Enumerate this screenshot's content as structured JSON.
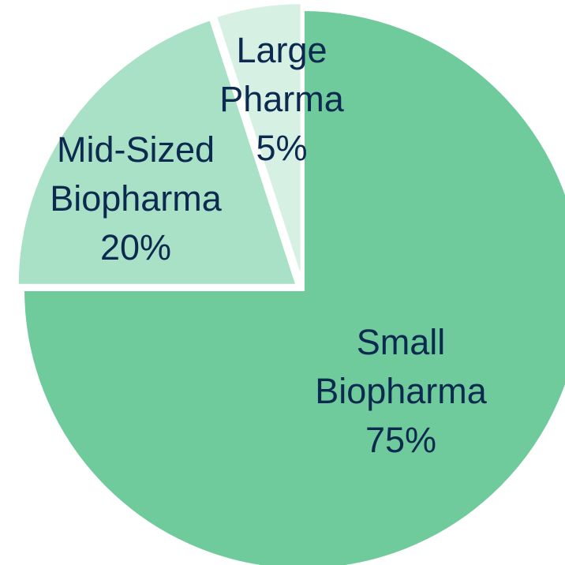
{
  "chart_data": {
    "type": "pie",
    "categories": [
      "Small Biopharma",
      "Mid-Sized Biopharma",
      "Large Pharma"
    ],
    "values": [
      75,
      20,
      5
    ],
    "value_labels": [
      "75%",
      "20%",
      "5%"
    ],
    "colors": [
      "#6fcb9b",
      "#a9e1c6",
      "#d7f0e4"
    ]
  }
}
